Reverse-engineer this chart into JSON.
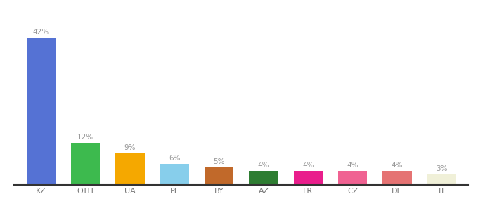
{
  "categories": [
    "KZ",
    "OTH",
    "UA",
    "PL",
    "BY",
    "AZ",
    "FR",
    "CZ",
    "DE",
    "IT"
  ],
  "values": [
    42,
    12,
    9,
    6,
    5,
    4,
    4,
    4,
    4,
    3
  ],
  "bar_colors": [
    "#5572d4",
    "#3dba4e",
    "#f5a800",
    "#87ceeb",
    "#c1692a",
    "#2e7d32",
    "#e91e8c",
    "#f06292",
    "#e57373",
    "#f0f0d8"
  ],
  "label_fontsize": 7.5,
  "tick_fontsize": 8,
  "value_label_color": "#999999",
  "tick_color": "#777777",
  "background_color": "#ffffff",
  "ylim": [
    0,
    48
  ],
  "bar_width": 0.65
}
